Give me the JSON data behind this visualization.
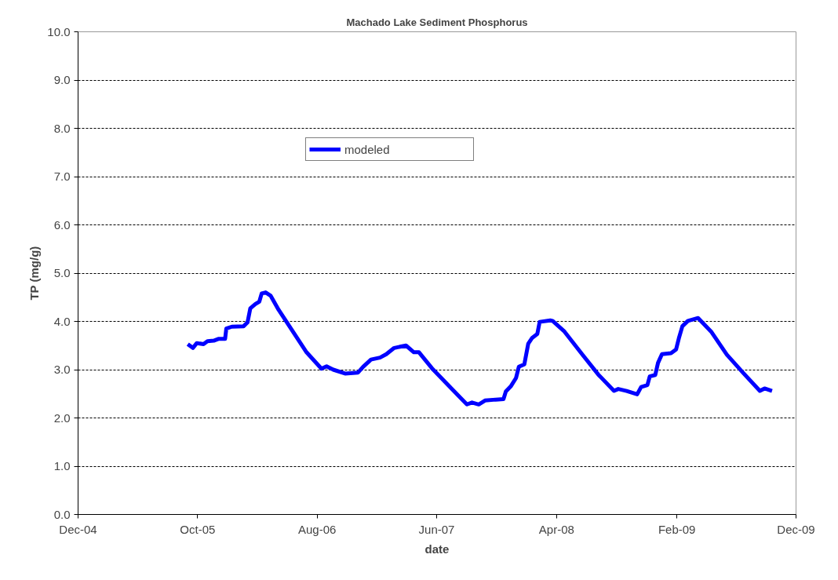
{
  "chart_data": {
    "type": "line",
    "title": "Machado Lake Sediment Phosphorus",
    "xlabel": "date",
    "ylabel": "TP (mg/g)",
    "x": [
      "2005-09-06",
      "2005-09-19",
      "2005-09-29",
      "2005-10-16",
      "2005-10-26",
      "2005-11-11",
      "2005-11-24",
      "2005-12-10",
      "2005-12-13",
      "2005-12-27",
      "2006-01-26",
      "2006-02-05",
      "2006-02-12",
      "2006-02-25",
      "2006-03-07",
      "2006-03-13",
      "2006-03-23",
      "2006-04-05",
      "2006-04-25",
      "2006-07-04",
      "2006-08-12",
      "2006-08-25",
      "2006-09-11",
      "2006-10-11",
      "2006-11-13",
      "2006-11-26",
      "2006-12-16",
      "2007-01-08",
      "2007-01-24",
      "2007-02-13",
      "2007-03-15",
      "2007-04-04",
      "2007-04-17",
      "2007-05-20",
      "2007-07-12",
      "2007-08-17",
      "2007-08-30",
      "2007-09-16",
      "2007-10-02",
      "2007-10-29",
      "2007-11-18",
      "2007-11-24",
      "2007-12-07",
      "2007-12-20",
      "2007-12-27",
      "2008-01-10",
      "2008-01-20",
      "2008-01-30",
      "2008-02-12",
      "2008-02-18",
      "2008-03-16",
      "2008-03-22",
      "2008-04-21",
      "2008-06-06",
      "2008-07-16",
      "2008-08-25",
      "2008-09-05",
      "2008-09-26",
      "2008-10-23",
      "2008-11-02",
      "2008-11-18",
      "2008-11-24",
      "2008-12-08",
      "2008-12-15",
      "2008-12-25",
      "2009-01-17",
      "2009-01-30",
      "2009-02-06",
      "2009-02-15",
      "2009-03-01",
      "2009-03-27",
      "2009-04-29",
      "2009-06-08",
      "2009-07-21",
      "2009-08-31",
      "2009-09-12",
      "2009-10-01"
    ],
    "series": [
      {
        "name": "modeled",
        "color": "#0000ff",
        "values": [
          3.53,
          3.45,
          3.55,
          3.53,
          3.59,
          3.6,
          3.64,
          3.64,
          3.85,
          3.89,
          3.9,
          3.98,
          4.27,
          4.36,
          4.41,
          4.58,
          4.6,
          4.53,
          4.24,
          3.37,
          3.02,
          3.07,
          3.0,
          2.92,
          2.94,
          3.06,
          3.21,
          3.25,
          3.32,
          3.45,
          3.5,
          3.36,
          3.36,
          3.03,
          2.58,
          2.28,
          2.32,
          2.28,
          2.36,
          2.38,
          2.39,
          2.55,
          2.66,
          2.83,
          3.06,
          3.11,
          3.54,
          3.66,
          3.74,
          3.99,
          4.02,
          4.01,
          3.79,
          3.31,
          2.9,
          2.56,
          2.6,
          2.56,
          2.49,
          2.64,
          2.68,
          2.86,
          2.89,
          3.14,
          3.32,
          3.34,
          3.42,
          3.65,
          3.9,
          4.01,
          4.07,
          3.79,
          3.31,
          2.92,
          2.56,
          2.61,
          2.56
        ]
      }
    ],
    "xlim": [
      "2004-12-01",
      "2009-12-01"
    ],
    "xticks": [
      {
        "value": "2004-12-01",
        "label": "Dec-04"
      },
      {
        "value": "2005-10-01",
        "label": "Oct-05"
      },
      {
        "value": "2006-08-01",
        "label": "Aug-06"
      },
      {
        "value": "2007-06-01",
        "label": "Jun-07"
      },
      {
        "value": "2008-04-01",
        "label": "Apr-08"
      },
      {
        "value": "2009-02-01",
        "label": "Feb-09"
      },
      {
        "value": "2009-12-01",
        "label": "Dec-09"
      }
    ],
    "ylim": [
      0,
      10
    ],
    "yticks": [
      {
        "value": 0,
        "label": "0.0"
      },
      {
        "value": 1,
        "label": "1.0"
      },
      {
        "value": 2,
        "label": "2.0"
      },
      {
        "value": 3,
        "label": "3.0"
      },
      {
        "value": 4,
        "label": "4.0"
      },
      {
        "value": 5,
        "label": "5.0"
      },
      {
        "value": 6,
        "label": "6.0"
      },
      {
        "value": 7,
        "label": "7.0"
      },
      {
        "value": 8,
        "label": "8.0"
      },
      {
        "value": 9,
        "label": "9.0"
      },
      {
        "value": 10,
        "label": "10.0"
      }
    ],
    "grid": "y",
    "legend": "top",
    "marker": "none",
    "line_style": "solid"
  }
}
